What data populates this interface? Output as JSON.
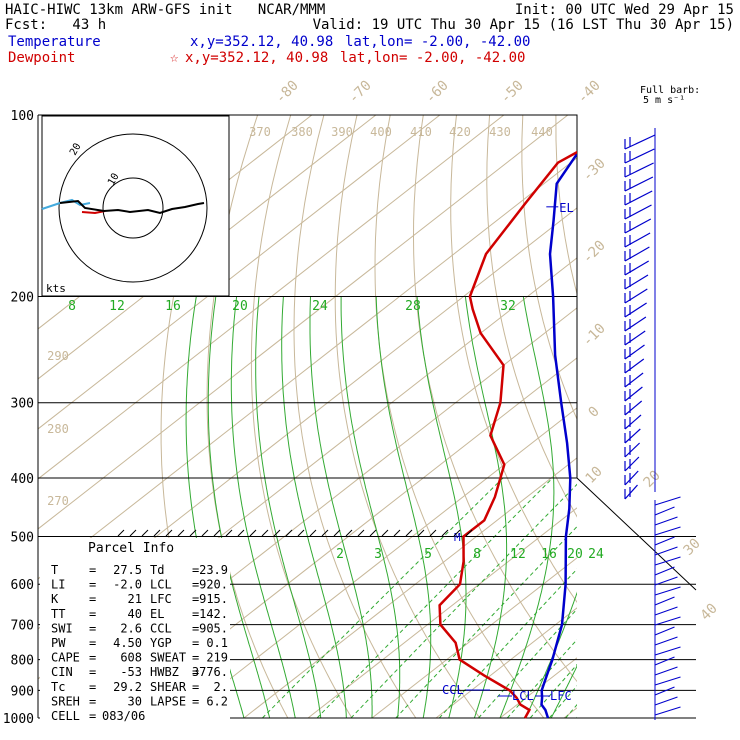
{
  "header": {
    "line1_left": "HAIC-HIWC 13km ARW-GFS init   NCAR/MMM",
    "line1_right": "Init: 00 UTC Wed 29 Apr 15",
    "line2_left": "Fcst:   43 h",
    "line2_right": "Valid: 19 UTC Thu 30 Apr 15 (16 LST Thu 30 Apr 15)",
    "temp_label": "Temperature",
    "temp_coords": "x,y=352.12, 40.98",
    "temp_latlon": "lat,lon= -2.00, -42.00",
    "dew_label": "Dewpoint",
    "dew_coords": "x,y=352.12, 40.98",
    "dew_latlon": "lat,lon= -2.00, -42.00",
    "colors": {
      "temperature": "#0000cc",
      "dewpoint": "#d00000",
      "text": "#000000"
    }
  },
  "barb_legend": {
    "line1": "Full barb:",
    "line2": "5 m s⁻¹"
  },
  "hodograph": {
    "units": "kts",
    "ring_labels": [
      "10",
      "20"
    ]
  },
  "parcel_info": {
    "title": "Parcel Info",
    "rows": [
      {
        "l1": "T",
        "v1": "27.5",
        "l2": "Td",
        "v2": "23.9"
      },
      {
        "l1": "LI",
        "v1": "-2.0",
        "l2": "LCL",
        "v2": "920."
      },
      {
        "l1": "K",
        "v1": "21",
        "l2": "LFC",
        "v2": "915."
      },
      {
        "l1": "TT",
        "v1": "40",
        "l2": "EL",
        "v2": "142."
      },
      {
        "l1": "SWI",
        "v1": "2.6",
        "l2": "CCL",
        "v2": "905."
      },
      {
        "l1": "PW",
        "v1": "4.50",
        "l2": "YGP",
        "v2": "0.1"
      },
      {
        "l1": "CAPE",
        "v1": "608",
        "l2": "SWEAT",
        "v2": "219"
      },
      {
        "l1": "CIN",
        "v1": "-53",
        "l2": "HWBZ",
        "v2": "3776."
      },
      {
        "l1": "Tc",
        "v1": "29.2",
        "l2": "SHEAR",
        "v2": "2."
      },
      {
        "l1": "SREH",
        "v1": "30",
        "l2": "LAPSE",
        "v2": "6.2"
      },
      {
        "l1": "CELL",
        "v1": "083/06",
        "l2": "",
        "v2": ""
      }
    ]
  },
  "level_labels": {
    "el": "EL",
    "ccl": "CCL",
    "lcl": "LCL",
    "lfc": "LFC",
    "m": "M"
  },
  "chart_data": {
    "type": "line",
    "title": "",
    "ylabel": "",
    "xlabel": "",
    "y_scale": "log-pressure",
    "pressure_ticks": [
      100,
      200,
      300,
      400,
      500,
      600,
      700,
      800,
      900,
      1000
    ],
    "isotherm_labels": [
      "-80",
      "-70",
      "-60",
      "-50",
      "-40",
      "-30",
      "-20",
      "-10",
      "0",
      "10",
      "20",
      "30",
      "40"
    ],
    "theta_labels": [
      "370",
      "380",
      "390",
      "400",
      "410",
      "420",
      "430",
      "440",
      "290",
      "280",
      "270"
    ],
    "mixing_ratio_labels_upper": [
      "8",
      "12",
      "16",
      "20",
      "24",
      "28",
      "32"
    ],
    "mixing_ratio_labels_lower": [
      "2",
      "3",
      "5",
      "8",
      "12",
      "16",
      "20",
      "24"
    ],
    "series": [
      {
        "name": "Temperature",
        "color": "#0000cc",
        "points": [
          [
            1000,
            27.5
          ],
          [
            970,
            25.5
          ],
          [
            950,
            23.8
          ],
          [
            925,
            22.5
          ],
          [
            900,
            21.0
          ],
          [
            850,
            18.8
          ],
          [
            800,
            16.5
          ],
          [
            700,
            11.0
          ],
          [
            600,
            3.5
          ],
          [
            500,
            -6.0
          ],
          [
            450,
            -11.0
          ],
          [
            400,
            -17.0
          ],
          [
            350,
            -24.5
          ],
          [
            300,
            -33.5
          ],
          [
            250,
            -44.0
          ],
          [
            200,
            -56.0
          ],
          [
            170,
            -65.0
          ],
          [
            150,
            -71.0
          ],
          [
            130,
            -78.0
          ],
          [
            115,
            -81.0
          ],
          [
            100,
            -80.0
          ]
        ]
      },
      {
        "name": "Dewpoint",
        "color": "#d00000",
        "points": [
          [
            1000,
            23.9
          ],
          [
            970,
            23.0
          ],
          [
            950,
            20.5
          ],
          [
            925,
            18.5
          ],
          [
            900,
            16.0
          ],
          [
            850,
            9.0
          ],
          [
            800,
            2.0
          ],
          [
            750,
            -2.0
          ],
          [
            700,
            -8.0
          ],
          [
            650,
            -12.0
          ],
          [
            600,
            -13.0
          ],
          [
            550,
            -17.0
          ],
          [
            500,
            -22.0
          ],
          [
            470,
            -22.0
          ],
          [
            430,
            -25.0
          ],
          [
            380,
            -30.0
          ],
          [
            340,
            -38.0
          ],
          [
            300,
            -43.0
          ],
          [
            260,
            -50.0
          ],
          [
            230,
            -60.0
          ],
          [
            210,
            -66.0
          ],
          [
            200,
            -69.0
          ],
          [
            170,
            -75.0
          ],
          [
            140,
            -79.0
          ],
          [
            120,
            -82.0
          ],
          [
            100,
            -78.0
          ]
        ]
      }
    ]
  }
}
